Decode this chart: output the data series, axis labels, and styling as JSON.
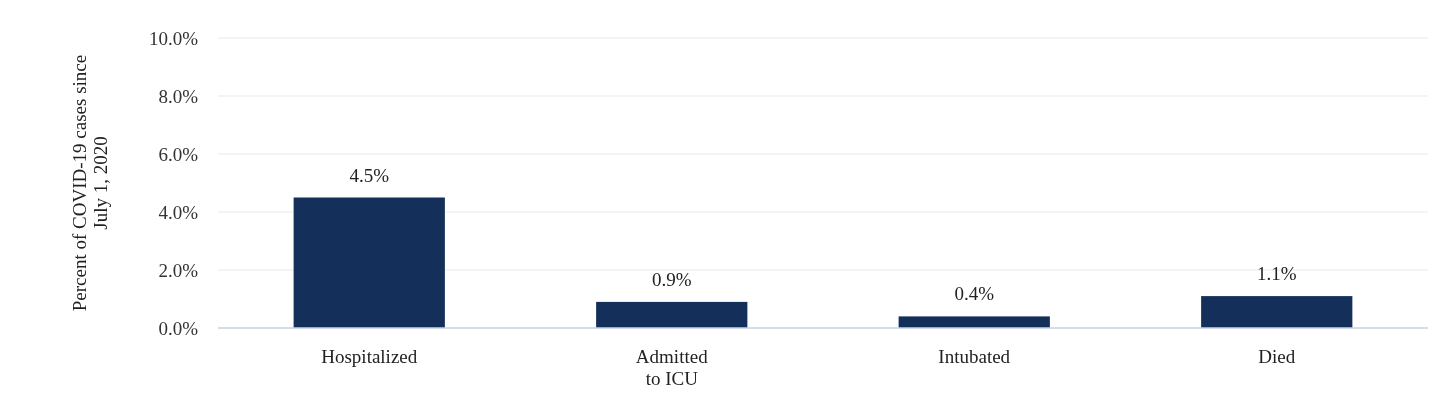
{
  "chart_data": {
    "type": "bar",
    "ylabel": "Percent of COVID-19 cases since July 1, 2020",
    "categories": [
      "Hospitalized",
      "Admitted\nto ICU",
      "Intubated",
      "Died"
    ],
    "values": [
      4.5,
      0.9,
      0.4,
      1.1
    ],
    "value_labels": [
      "4.5%",
      "0.9%",
      "0.4%",
      "1.1%"
    ],
    "color": "#142f5a",
    "ylim": [
      0,
      10
    ],
    "yticks": [
      {
        "value": 0,
        "label": "0.0%"
      },
      {
        "value": 2,
        "label": "2.0%"
      },
      {
        "value": 4,
        "label": "4.0%"
      },
      {
        "value": 6,
        "label": "6.0%"
      },
      {
        "value": 8,
        "label": "8.0%"
      },
      {
        "value": 10,
        "label": "10.0%"
      }
    ],
    "grid": "y"
  }
}
